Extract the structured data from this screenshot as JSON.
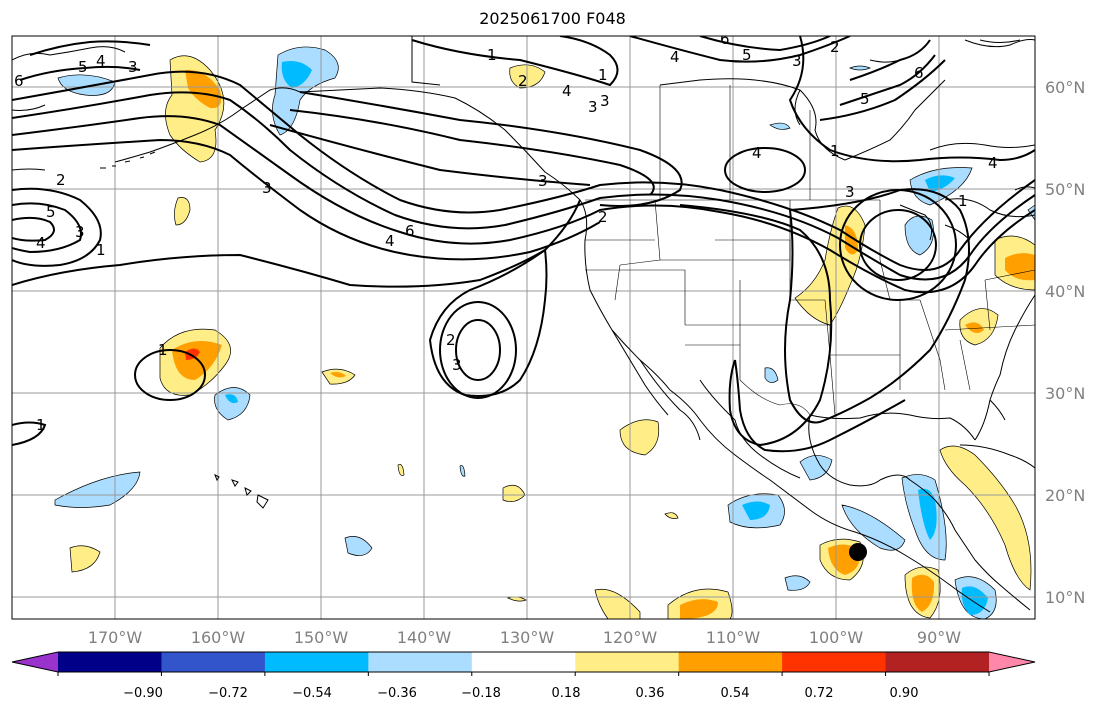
{
  "title": "2025061700 F048",
  "lon_ticks": [
    "170°W",
    "160°W",
    "150°W",
    "140°W",
    "130°W",
    "120°W",
    "110°W",
    "100°W",
    "90°W"
  ],
  "lat_ticks": [
    "60°N",
    "50°N",
    "40°N",
    "30°N",
    "20°N",
    "10°N"
  ],
  "colorbar": {
    "colors": [
      "#9933cc",
      "#000088",
      "#3355cc",
      "#00bbff",
      "#aaddff",
      "#ffffff",
      "#ffee88",
      "#ffa000",
      "#ff3300",
      "#b22222",
      "#ff88aa"
    ],
    "labels": [
      "−0.90",
      "−0.72",
      "−0.54",
      "−0.36",
      "−0.18",
      "0.18",
      "0.36",
      "0.54",
      "0.72",
      "0.90"
    ]
  },
  "contour_labels": [
    "6",
    "5",
    "4",
    "3",
    "1",
    "3",
    "2",
    "1",
    "3",
    "6",
    "4",
    "2",
    "3",
    "3",
    "5",
    "4",
    "1",
    "4",
    "6",
    "3",
    "2",
    "4",
    "3",
    "5",
    "6",
    "4",
    "3",
    "2",
    "1",
    "2",
    "5",
    "4",
    "3",
    "1",
    "1",
    "1"
  ],
  "colors": {
    "grid": "#999999",
    "coast": "#000000",
    "contour": "#000000",
    "light_yellow": "#ffee88",
    "orange": "#ffa000",
    "red_orange": "#ff3300",
    "light_blue": "#aaddff",
    "cyan": "#00bbff"
  }
}
